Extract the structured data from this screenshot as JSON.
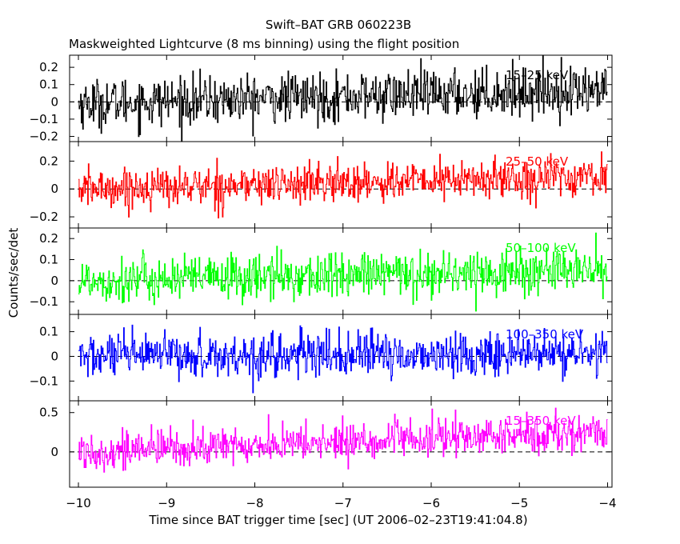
{
  "title": "Swift–BAT GRB 060223B",
  "subtitle": "Maskweighted Lightcurve (8 ms binning) using the flight position",
  "xlabel": "Time since BAT trigger time [sec] (UT 2006–02–23T19:41:04.8)",
  "ylabel": "Counts/sec/det",
  "chart_data": {
    "type": "line",
    "xlim": [
      -10.1,
      -3.95
    ],
    "x_ticks": [
      -10,
      -9,
      -8,
      -7,
      -6,
      -5,
      -4
    ],
    "x_tick_labels": [
      "−10",
      "−9",
      "−8",
      "−7",
      "−6",
      "−5",
      "−4"
    ],
    "x_start": -10.0,
    "x_end": -4.0,
    "bin_width_s": 0.008,
    "series": [
      {
        "name": "15–25 keV",
        "color": "#000000",
        "ylim": [
          -0.23,
          0.27
        ],
        "y_ticks": [
          -0.2,
          -0.1,
          0,
          0.1,
          0.2
        ],
        "y_tick_labels": [
          "−0.2",
          "−0.1",
          "0",
          "0.1",
          "0.2"
        ],
        "trend_start": -0.01,
        "trend_end": 0.07,
        "noise_sigma": 0.07
      },
      {
        "name": "25–50 keV",
        "color": "#ff0000",
        "ylim": [
          -0.28,
          0.34
        ],
        "y_ticks": [
          -0.2,
          0,
          0.2
        ],
        "y_tick_labels": [
          "−0.2",
          "0",
          "0.2"
        ],
        "trend_start": 0.0,
        "trend_end": 0.09,
        "noise_sigma": 0.07
      },
      {
        "name": "50–100 keV",
        "color": "#00ff00",
        "ylim": [
          -0.16,
          0.25
        ],
        "y_ticks": [
          -0.1,
          0,
          0.1,
          0.2
        ],
        "y_tick_labels": [
          "−0.1",
          "0",
          "0.1",
          "0.2"
        ],
        "trend_start": 0.0,
        "trend_end": 0.05,
        "noise_sigma": 0.055
      },
      {
        "name": "100–350 keV",
        "color": "#0000ff",
        "ylim": [
          -0.18,
          0.17
        ],
        "y_ticks": [
          -0.1,
          0,
          0.1
        ],
        "y_tick_labels": [
          "−0.1",
          "0",
          "0.1"
        ],
        "trend_start": 0.0,
        "trend_end": 0.01,
        "noise_sigma": 0.045
      },
      {
        "name": "15–350 keV",
        "color": "#ff00ff",
        "ylim": [
          -0.45,
          0.65
        ],
        "y_ticks": [
          0,
          0.5
        ],
        "y_tick_labels": [
          "0",
          "0.5"
        ],
        "trend_start": 0.0,
        "trend_end": 0.25,
        "noise_sigma": 0.12
      }
    ]
  }
}
